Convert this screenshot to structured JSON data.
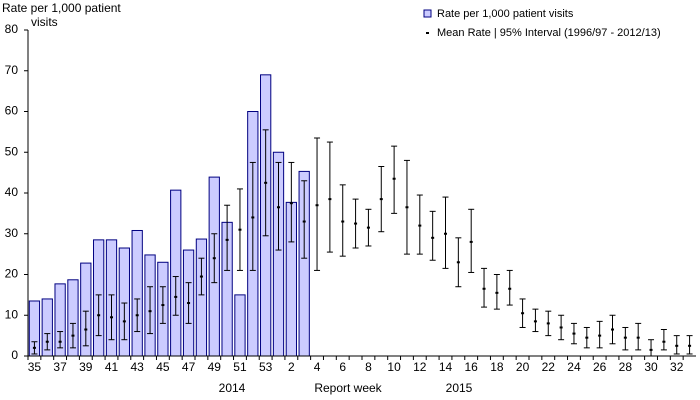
{
  "chart_data": {
    "type": "bar",
    "y_label": [
      "Rate per 1,000  patient",
      "visits"
    ],
    "x_label": "Report week",
    "x_group_labels": [
      "2014",
      "2015"
    ],
    "categories": [
      "35",
      null,
      "37",
      null,
      "39",
      null,
      "41",
      null,
      "43",
      null,
      "45",
      null,
      "47",
      null,
      "49",
      null,
      "51",
      null,
      "53",
      null,
      "2",
      null,
      "4",
      null,
      "6",
      null,
      "8",
      null,
      "10",
      null,
      "12",
      null,
      "14",
      null,
      "16",
      null,
      "18",
      null,
      "20",
      null,
      "22",
      null,
      "24",
      null,
      "26",
      null,
      "28",
      null,
      "30",
      null,
      "32",
      null
    ],
    "series": [
      {
        "name": "Rate per 1,000 patient visits",
        "color": "#ccccff",
        "values": [
          13.5,
          14,
          17.7,
          18.7,
          22.8,
          28.5,
          28.5,
          26.5,
          30.8,
          24.8,
          23,
          40.7,
          26,
          28.7,
          43.9,
          32.8,
          15,
          60,
          69,
          50,
          37.7,
          45.3,
          null,
          null,
          null,
          null,
          null,
          null,
          null,
          null,
          null,
          null,
          null,
          null,
          null,
          null,
          null,
          null,
          null,
          null,
          null,
          null,
          null,
          null,
          null,
          null,
          null,
          null,
          null,
          null,
          null,
          null
        ]
      },
      {
        "name": "Mean Rate | 95% Interval (1996/97 - 2012/13)",
        "color": "#000000",
        "values": [
          2,
          3.5,
          3.5,
          5,
          6.5,
          10,
          9.5,
          8.5,
          10,
          11,
          12.5,
          14.5,
          13,
          19.5,
          24,
          28.5,
          31,
          34,
          42.5,
          36.5,
          37.5,
          33,
          37,
          38.5,
          33,
          32.5,
          31.5,
          38.5,
          43.5,
          36.5,
          32,
          29,
          30,
          23,
          28,
          16.5,
          15.5,
          16.5,
          10.5,
          8.5,
          8,
          7,
          5.5,
          4.5,
          5,
          6.5,
          4.5,
          4.5,
          1.5,
          3.5,
          2.5,
          2.5
        ],
        "low": [
          0.5,
          1.5,
          2,
          2,
          2.5,
          5,
          4,
          4,
          6,
          5.5,
          8,
          10,
          8,
          15,
          18,
          21,
          21,
          21,
          29.5,
          26,
          28,
          24,
          21,
          25.5,
          24.5,
          26.5,
          27,
          30.5,
          35,
          25,
          25,
          23.5,
          21.5,
          17,
          20.5,
          12,
          11.5,
          12.5,
          7,
          6,
          5,
          4,
          3,
          2,
          2,
          3,
          1.5,
          1.5,
          0,
          1.5,
          0.5,
          0.5
        ],
        "high": [
          3.5,
          5.5,
          6,
          8,
          11,
          15,
          15,
          13,
          14,
          17,
          17,
          19.5,
          18,
          24,
          30,
          37,
          41,
          47.5,
          55.5,
          47.5,
          47.5,
          43,
          53.5,
          52.5,
          42,
          38.5,
          36,
          46.5,
          51.5,
          48,
          39.5,
          35.5,
          39,
          29,
          36,
          21.5,
          20,
          21,
          14,
          11.5,
          11,
          10,
          8,
          7,
          8.5,
          10,
          7,
          8,
          4,
          6.5,
          5,
          5
        ]
      }
    ],
    "ylim": [
      0,
      80
    ],
    "yticks": [
      0,
      10,
      20,
      30,
      40,
      50,
      60,
      70,
      80
    ],
    "legend": "top-right"
  }
}
